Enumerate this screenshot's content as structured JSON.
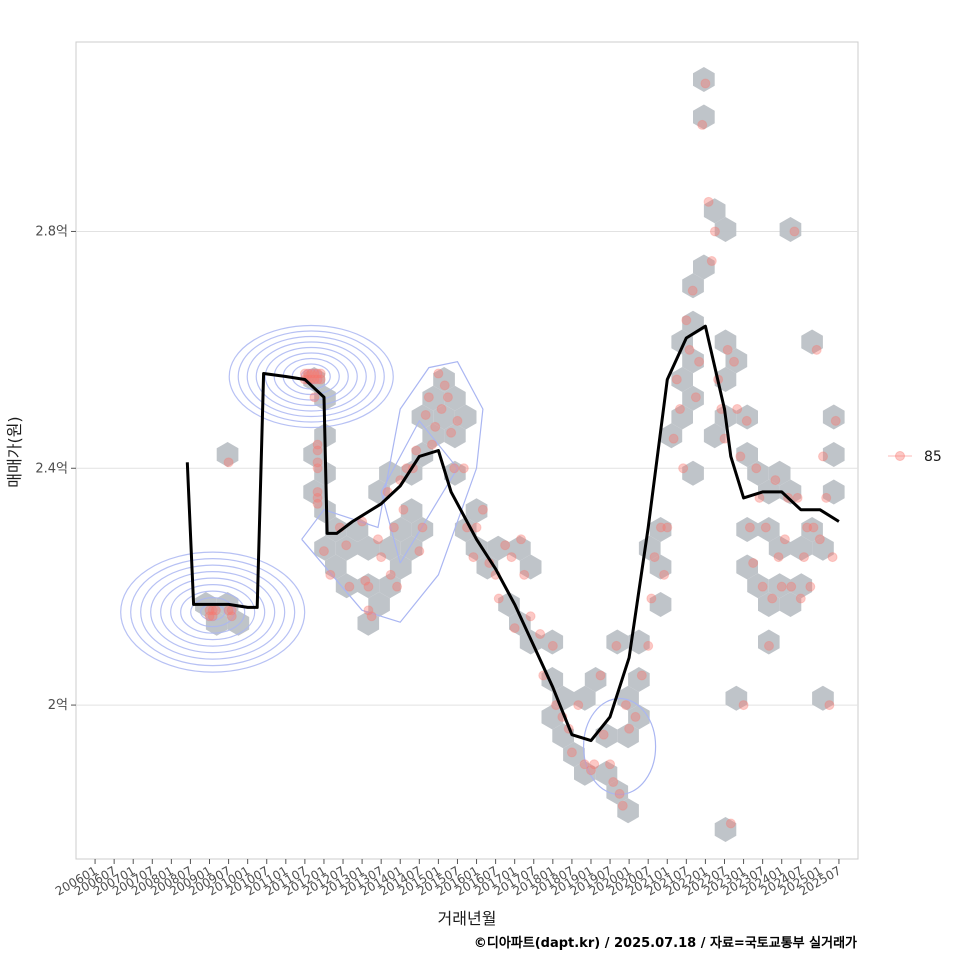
{
  "chart_data": {
    "type": "scatter",
    "xlabel": "거래년월",
    "ylabel": "매매가(원)",
    "caption": "©디아파트(dapt.kr) / 2025.07.18 / 자료=국토교통부 실거래가",
    "x_ticks": [
      "200601",
      "200607",
      "200701",
      "200707",
      "200801",
      "200807",
      "200901",
      "200907",
      "201001",
      "201007",
      "201101",
      "201107",
      "201201",
      "201207",
      "201301",
      "201307",
      "201401",
      "201407",
      "201501",
      "201507",
      "201601",
      "201607",
      "201701",
      "201707",
      "201801",
      "201807",
      "201901",
      "201907",
      "202001",
      "202007",
      "202101",
      "202107",
      "202201",
      "202207",
      "202301",
      "202307",
      "202401",
      "202407",
      "202501",
      "202507"
    ],
    "y_ticks": [
      {
        "value": 2.0,
        "label": "2억"
      },
      {
        "value": 2.4,
        "label": "2.4억"
      },
      {
        "value": 2.8,
        "label": "2.8억"
      }
    ],
    "xlim": [
      "200507",
      "202601"
    ],
    "ylim": [
      1.74,
      3.12
    ],
    "grid": true,
    "legend": {
      "position": "right",
      "entries": [
        {
          "label": "85",
          "color": "#f8766d"
        }
      ]
    },
    "series": [
      {
        "kind": "transactions",
        "color": "#f8766d",
        "points": [
          [
            "200907",
            2.41
          ],
          [
            "200901",
            2.16
          ],
          [
            "200901",
            2.15
          ],
          [
            "200902",
            2.16
          ],
          [
            "200902",
            2.15
          ],
          [
            "200903",
            2.16
          ],
          [
            "200907",
            2.16
          ],
          [
            "200908",
            2.15
          ],
          [
            "200908",
            2.16
          ],
          [
            "201107",
            2.55
          ],
          [
            "201107",
            2.56
          ],
          [
            "201108",
            2.55
          ],
          [
            "201108",
            2.56
          ],
          [
            "201109",
            2.55
          ],
          [
            "201109",
            2.56
          ],
          [
            "201110",
            2.55
          ],
          [
            "201110",
            2.56
          ],
          [
            "201111",
            2.55
          ],
          [
            "201111",
            2.56
          ],
          [
            "201112",
            2.56
          ],
          [
            "201112",
            2.55
          ],
          [
            "201110",
            2.52
          ],
          [
            "201111",
            2.44
          ],
          [
            "201111",
            2.43
          ],
          [
            "201111",
            2.41
          ],
          [
            "201111",
            2.4
          ],
          [
            "201111",
            2.36
          ],
          [
            "201111",
            2.35
          ],
          [
            "201111",
            2.34
          ],
          [
            "201201",
            2.26
          ],
          [
            "201203",
            2.22
          ],
          [
            "201206",
            2.3
          ],
          [
            "201208",
            2.27
          ],
          [
            "201209",
            2.2
          ],
          [
            "201301",
            2.31
          ],
          [
            "201302",
            2.21
          ],
          [
            "201303",
            2.2
          ],
          [
            "201303",
            2.16
          ],
          [
            "201304",
            2.15
          ],
          [
            "201306",
            2.28
          ],
          [
            "201307",
            2.25
          ],
          [
            "201309",
            2.36
          ],
          [
            "201310",
            2.22
          ],
          [
            "201311",
            2.3
          ],
          [
            "201312",
            2.2
          ],
          [
            "201401",
            2.38
          ],
          [
            "201402",
            2.33
          ],
          [
            "201403",
            2.4
          ],
          [
            "201405",
            2.4
          ],
          [
            "201406",
            2.43
          ],
          [
            "201407",
            2.26
          ],
          [
            "201408",
            2.3
          ],
          [
            "201409",
            2.49
          ],
          [
            "201410",
            2.52
          ],
          [
            "201411",
            2.44
          ],
          [
            "201412",
            2.47
          ],
          [
            "201501",
            2.56
          ],
          [
            "201502",
            2.5
          ],
          [
            "201503",
            2.54
          ],
          [
            "201504",
            2.52
          ],
          [
            "201505",
            2.46
          ],
          [
            "201506",
            2.4
          ],
          [
            "201507",
            2.48
          ],
          [
            "201509",
            2.4
          ],
          [
            "201510",
            2.3
          ],
          [
            "201512",
            2.25
          ],
          [
            "201601",
            2.3
          ],
          [
            "201603",
            2.33
          ],
          [
            "201605",
            2.24
          ],
          [
            "201607",
            2.22
          ],
          [
            "201608",
            2.18
          ],
          [
            "201610",
            2.27
          ],
          [
            "201612",
            2.25
          ],
          [
            "201701",
            2.13
          ],
          [
            "201703",
            2.28
          ],
          [
            "201704",
            2.22
          ],
          [
            "201706",
            2.15
          ],
          [
            "201709",
            2.12
          ],
          [
            "201710",
            2.05
          ],
          [
            "201801",
            2.1
          ],
          [
            "201802",
            2.0
          ],
          [
            "201804",
            1.98
          ],
          [
            "201806",
            1.96
          ],
          [
            "201807",
            1.92
          ],
          [
            "201809",
            2.0
          ],
          [
            "201811",
            1.9
          ],
          [
            "201901",
            1.89
          ],
          [
            "201902",
            1.9
          ],
          [
            "201904",
            2.05
          ],
          [
            "201905",
            1.95
          ],
          [
            "201907",
            1.9
          ],
          [
            "201908",
            1.87
          ],
          [
            "201909",
            2.1
          ],
          [
            "201910",
            1.85
          ],
          [
            "201911",
            1.83
          ],
          [
            "201912",
            2.0
          ],
          [
            "202001",
            1.96
          ],
          [
            "202003",
            1.98
          ],
          [
            "202005",
            2.05
          ],
          [
            "202007",
            2.1
          ],
          [
            "202008",
            2.18
          ],
          [
            "202009",
            2.25
          ],
          [
            "202011",
            2.3
          ],
          [
            "202012",
            2.22
          ],
          [
            "202101",
            2.3
          ],
          [
            "202103",
            2.45
          ],
          [
            "202104",
            2.55
          ],
          [
            "202105",
            2.5
          ],
          [
            "202106",
            2.4
          ],
          [
            "202107",
            2.65
          ],
          [
            "202108",
            2.6
          ],
          [
            "202109",
            2.7
          ],
          [
            "202110",
            2.52
          ],
          [
            "202111",
            2.58
          ],
          [
            "202112",
            2.98
          ],
          [
            "202201",
            3.05
          ],
          [
            "202202",
            2.85
          ],
          [
            "202203",
            2.75
          ],
          [
            "202204",
            2.8
          ],
          [
            "202205",
            2.55
          ],
          [
            "202206",
            2.5
          ],
          [
            "202207",
            2.45
          ],
          [
            "202208",
            2.6
          ],
          [
            "202209",
            1.8
          ],
          [
            "202210",
            2.58
          ],
          [
            "202211",
            2.5
          ],
          [
            "202212",
            2.42
          ],
          [
            "202301",
            2.0
          ],
          [
            "202302",
            2.48
          ],
          [
            "202303",
            2.3
          ],
          [
            "202304",
            2.24
          ],
          [
            "202305",
            2.4
          ],
          [
            "202306",
            2.35
          ],
          [
            "202307",
            2.2
          ],
          [
            "202308",
            2.3
          ],
          [
            "202309",
            2.1
          ],
          [
            "202310",
            2.18
          ],
          [
            "202311",
            2.38
          ],
          [
            "202312",
            2.25
          ],
          [
            "202401",
            2.2
          ],
          [
            "202402",
            2.28
          ],
          [
            "202403",
            2.35
          ],
          [
            "202404",
            2.2
          ],
          [
            "202405",
            2.8
          ],
          [
            "202406",
            2.35
          ],
          [
            "202407",
            2.18
          ],
          [
            "202408",
            2.25
          ],
          [
            "202409",
            2.3
          ],
          [
            "202410",
            2.2
          ],
          [
            "202411",
            2.3
          ],
          [
            "202412",
            2.6
          ],
          [
            "202501",
            2.28
          ],
          [
            "202502",
            2.42
          ],
          [
            "202503",
            2.35
          ],
          [
            "202504",
            2.0
          ],
          [
            "202505",
            2.25
          ],
          [
            "202506",
            2.48
          ]
        ]
      },
      {
        "kind": "moving-average",
        "color": "#000000",
        "points": [
          [
            "200806",
            2.41
          ],
          [
            "200808",
            2.17
          ],
          [
            "200901",
            2.17
          ],
          [
            "200907",
            2.17
          ],
          [
            "201001",
            2.165
          ],
          [
            "201004",
            2.165
          ],
          [
            "201006",
            2.56
          ],
          [
            "201101",
            2.555
          ],
          [
            "201107",
            2.55
          ],
          [
            "201201",
            2.52
          ],
          [
            "201202",
            2.29
          ],
          [
            "201205",
            2.29
          ],
          [
            "201210",
            2.31
          ],
          [
            "201307",
            2.34
          ],
          [
            "201401",
            2.37
          ],
          [
            "201407",
            2.42
          ],
          [
            "201501",
            2.43
          ],
          [
            "201505",
            2.36
          ],
          [
            "201601",
            2.28
          ],
          [
            "201607",
            2.23
          ],
          [
            "201701",
            2.17
          ],
          [
            "201707",
            2.1
          ],
          [
            "201801",
            2.03
          ],
          [
            "201807",
            1.95
          ],
          [
            "201901",
            1.94
          ],
          [
            "201907",
            1.98
          ],
          [
            "202001",
            2.08
          ],
          [
            "202007",
            2.3
          ],
          [
            "202101",
            2.55
          ],
          [
            "202107",
            2.62
          ],
          [
            "202201",
            2.64
          ],
          [
            "202207",
            2.5
          ],
          [
            "202209",
            2.42
          ],
          [
            "202301",
            2.35
          ],
          [
            "202307",
            2.36
          ],
          [
            "202401",
            2.36
          ],
          [
            "202407",
            2.33
          ],
          [
            "202501",
            2.33
          ],
          [
            "202507",
            2.31
          ]
        ]
      }
    ]
  }
}
